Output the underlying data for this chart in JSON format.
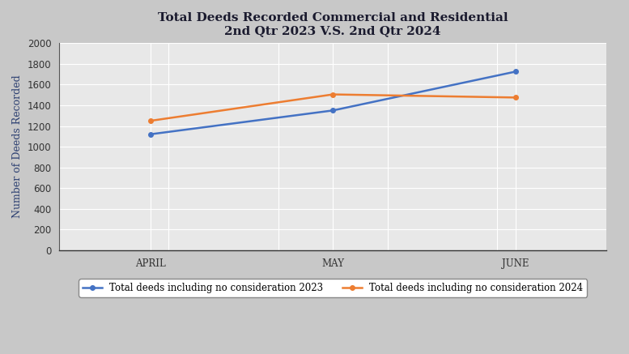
{
  "title_line1": "Total Deeds Recorded Commercial and Residential",
  "title_line2": "2nd Qtr 2023 V.S. 2nd Qtr 2024",
  "ylabel": "Number of Deeds Recorded",
  "categories": [
    "APRIL",
    "MAY",
    "JUNE"
  ],
  "series_2023": [
    1120,
    1350,
    1725
  ],
  "series_2024": [
    1250,
    1505,
    1475
  ],
  "color_2023": "#4472C4",
  "color_2024": "#ED7D31",
  "label_2023": "Total deeds including no consideration 2023",
  "label_2024": "Total deeds including no consideration 2024",
  "ylim": [
    0,
    2000
  ],
  "yticks": [
    0,
    200,
    400,
    600,
    800,
    1000,
    1200,
    1400,
    1600,
    1800,
    2000
  ],
  "outer_bg_color": "#C8C8C8",
  "plot_bg_color": "#E8E8E8",
  "grid_color": "#FFFFFF",
  "title_fontsize": 11,
  "axis_label_fontsize": 9,
  "tick_fontsize": 8.5,
  "legend_fontsize": 8.5,
  "marker": "o",
  "marker_size": 4,
  "line_width": 1.8,
  "ylabel_color": "#2E4172",
  "tick_color": "#333333",
  "title_color": "#1a1a2e"
}
